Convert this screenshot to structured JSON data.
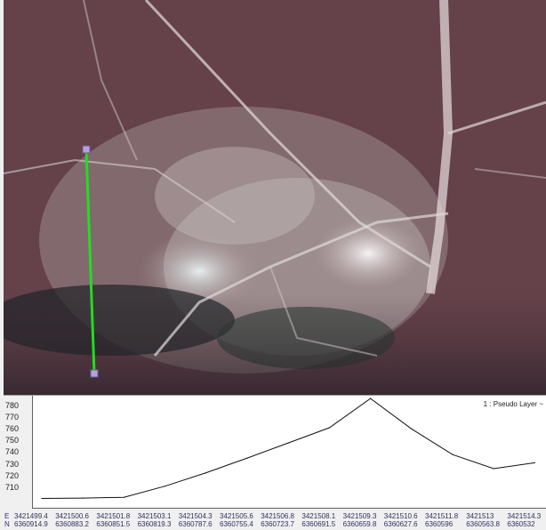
{
  "map": {
    "image_description_icon": "aerial-imagery",
    "profile_line_color": "#22dd22",
    "endpoint_color": "#b8a0e0"
  },
  "profile": {
    "layer_label": "1 : Pseudo Layer  ~",
    "line_color": "#101010",
    "y_ticks": [
      "780",
      "770",
      "760",
      "750",
      "740",
      "730",
      "720",
      "710"
    ],
    "e_prefix": "E",
    "n_prefix": "N",
    "easting": [
      "3421499.4",
      "3421500.6",
      "3421501.8",
      "3421503.1",
      "3421504.3",
      "3421505.6",
      "3421506.8",
      "3421508.1",
      "3421509.3",
      "3421510.6",
      "3421511.8",
      "3421513",
      "3421514.3"
    ],
    "northing": [
      "6360914.9",
      "6360883.2",
      "6360851.5",
      "6360819.3",
      "6360787.6",
      "6360755.4",
      "6360723.7",
      "6360691.5",
      "6360659.8",
      "6360627.6",
      "6360596",
      "6360563.8",
      "6360532"
    ]
  },
  "chart_data": {
    "type": "line",
    "title": "",
    "xlabel": "",
    "ylabel": "",
    "ylim": [
      700,
      785
    ],
    "x": [
      "3421499.4",
      "3421500.6",
      "3421501.8",
      "3421503.1",
      "3421504.3",
      "3421505.6",
      "3421506.8",
      "3421508.1",
      "3421509.3",
      "3421510.6",
      "3421511.8",
      "3421513",
      "3421514.3"
    ],
    "series": [
      {
        "values": [
          700.5,
          700.8,
          701.5,
          711,
          722.5,
          735,
          748,
          761,
          786,
          760,
          738,
          726,
          731
        ]
      }
    ]
  }
}
